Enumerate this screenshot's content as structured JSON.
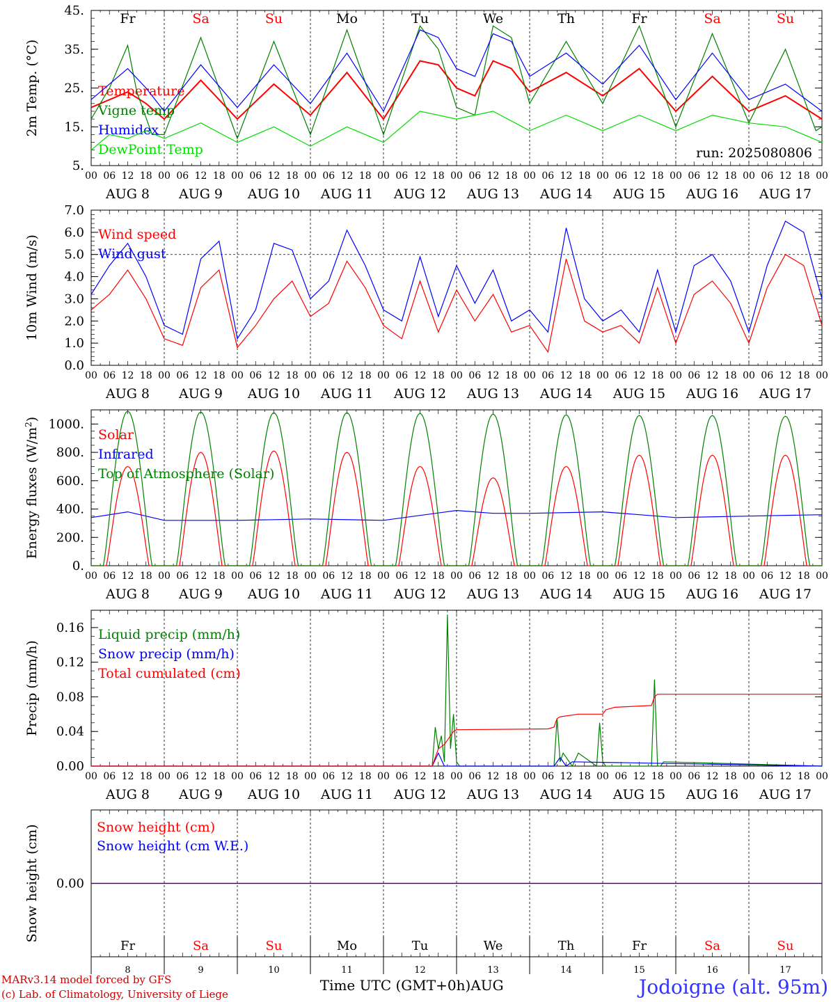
{
  "run_label": "run: 2025080806",
  "location_label": "Jodoigne (alt. 95m)",
  "credit_line1": "MARv3.14 model forced by GFS",
  "credit_line2": "(c) Lab. of Climatology, University of Liege",
  "x_axis_label": "Time UTC (GMT+0h)",
  "month_label": "AUG",
  "hour_ticks": [
    "00",
    "06",
    "12",
    "18"
  ],
  "days": [
    {
      "weekday": "Fr",
      "date_label": "AUG  8",
      "day": "8",
      "weekend": false
    },
    {
      "weekday": "Sa",
      "date_label": "AUG  9",
      "day": "9",
      "weekend": true
    },
    {
      "weekday": "Su",
      "date_label": "AUG 10",
      "day": "10",
      "weekend": true
    },
    {
      "weekday": "Mo",
      "date_label": "AUG 11",
      "day": "11",
      "weekend": false
    },
    {
      "weekday": "Tu",
      "date_label": "AUG 12",
      "day": "12",
      "weekend": false
    },
    {
      "weekday": "We",
      "date_label": "AUG 13",
      "day": "13",
      "weekend": false
    },
    {
      "weekday": "Th",
      "date_label": "AUG 14",
      "day": "14",
      "weekend": false
    },
    {
      "weekday": "Fr",
      "date_label": "AUG 15",
      "day": "15",
      "weekend": false
    },
    {
      "weekday": "Sa",
      "date_label": "AUG 16",
      "day": "16",
      "weekend": true
    },
    {
      "weekday": "Su",
      "date_label": "AUG 17",
      "day": "17",
      "weekend": true
    }
  ],
  "colors": {
    "weekday": "#000000",
    "weekend": "#ff0000",
    "red": "#ff0000",
    "green": "#008000",
    "blue": "#0000ff",
    "lightgreen": "#00dd00",
    "location": "#3333ff",
    "credit": "#cc0000"
  },
  "chart_data": [
    {
      "type": "line",
      "ylabel": "2m Temp. (°C)",
      "ylim": [
        5,
        45
      ],
      "ytick_labels": [
        "5.",
        "15.",
        "25.",
        "35.",
        "45."
      ],
      "x_unit": "hours since Aug 8 00 UTC",
      "series": [
        {
          "name": "Temperature",
          "color": "red",
          "x": [
            0,
            12,
            18,
            24,
            36,
            48,
            60,
            72,
            84,
            96,
            108,
            114,
            120,
            126,
            132,
            138,
            144,
            156,
            168,
            180,
            192,
            204,
            216,
            228,
            240
          ],
          "values": [
            20,
            24,
            21,
            17,
            27,
            17,
            26,
            18,
            29,
            17,
            32,
            31,
            25,
            23,
            32,
            30,
            24,
            29,
            23,
            30,
            19,
            28,
            19,
            23,
            17
          ]
        },
        {
          "name": "Vigne temp",
          "color": "green",
          "x": [
            0,
            6,
            12,
            15,
            20,
            24,
            36,
            48,
            60,
            72,
            84,
            96,
            108,
            114,
            120,
            126,
            132,
            138,
            144,
            156,
            168,
            180,
            192,
            204,
            216,
            228,
            238,
            240
          ],
          "values": [
            17,
            25,
            36,
            24,
            13,
            13,
            38,
            12,
            37,
            13,
            40,
            13,
            41,
            35,
            20,
            18,
            41,
            38,
            21,
            37,
            21,
            41,
            15,
            39,
            16,
            35,
            14,
            15
          ]
        },
        {
          "name": "Humidex",
          "color": "blue",
          "x": [
            0,
            12,
            18,
            24,
            36,
            48,
            60,
            72,
            84,
            96,
            108,
            114,
            120,
            126,
            132,
            138,
            144,
            156,
            168,
            180,
            192,
            204,
            216,
            228,
            240
          ],
          "values": [
            22,
            30,
            25,
            19,
            31,
            20,
            31,
            21,
            34,
            19,
            40,
            38,
            30,
            28,
            39,
            37,
            28,
            34,
            26,
            36,
            22,
            34,
            22,
            26,
            19
          ]
        },
        {
          "name": "DewPoint Temp",
          "color": "lightgreen",
          "x": [
            0,
            6,
            12,
            18,
            24,
            36,
            48,
            60,
            72,
            84,
            96,
            108,
            120,
            132,
            144,
            156,
            168,
            180,
            192,
            204,
            216,
            228,
            240
          ],
          "values": [
            9,
            13,
            12,
            14,
            12,
            16,
            11,
            15,
            10,
            15,
            11,
            19,
            17,
            19,
            14,
            18,
            14,
            18,
            14,
            18,
            16,
            15,
            11
          ]
        }
      ]
    },
    {
      "type": "line",
      "ylabel": "10m Wind (m/s)",
      "ylim": [
        0,
        7
      ],
      "ytick_labels": [
        "0.0",
        "1.0",
        "2.0",
        "3.0",
        "4.0",
        "5.0",
        "6.0",
        "7.0"
      ],
      "reference_line": 5,
      "series": [
        {
          "name": "Wind speed",
          "color": "red",
          "x": [
            0,
            6,
            12,
            18,
            24,
            30,
            36,
            42,
            48,
            54,
            60,
            66,
            72,
            78,
            84,
            90,
            96,
            102,
            108,
            114,
            120,
            126,
            132,
            138,
            144,
            150,
            156,
            162,
            168,
            174,
            180,
            186,
            192,
            198,
            204,
            210,
            216,
            222,
            228,
            234,
            240
          ],
          "values": [
            2.5,
            3.2,
            4.3,
            3.0,
            1.2,
            0.9,
            3.5,
            4.3,
            0.8,
            1.8,
            3.0,
            3.8,
            2.2,
            2.8,
            4.7,
            3.5,
            1.8,
            1.2,
            3.8,
            1.5,
            3.4,
            2.0,
            3.2,
            1.5,
            1.8,
            0.6,
            4.8,
            2.0,
            1.5,
            1.8,
            1.0,
            3.5,
            1.0,
            3.2,
            3.8,
            2.8,
            1.0,
            3.5,
            5.0,
            4.5,
            1.8
          ]
        },
        {
          "name": "Wind gust",
          "color": "blue",
          "x": [
            0,
            6,
            12,
            18,
            24,
            30,
            36,
            42,
            48,
            54,
            60,
            66,
            72,
            78,
            84,
            90,
            96,
            102,
            108,
            114,
            120,
            126,
            132,
            138,
            144,
            150,
            156,
            162,
            168,
            174,
            180,
            186,
            192,
            198,
            204,
            210,
            216,
            222,
            228,
            234,
            240
          ],
          "values": [
            3.2,
            4.5,
            5.5,
            4.0,
            1.8,
            1.4,
            4.8,
            5.6,
            1.2,
            2.5,
            5.5,
            5.2,
            3.0,
            3.8,
            6.1,
            4.5,
            2.5,
            2.0,
            4.9,
            2.2,
            4.5,
            2.8,
            4.3,
            2.0,
            2.5,
            1.5,
            6.2,
            3.0,
            2.0,
            2.5,
            1.5,
            4.3,
            1.5,
            4.5,
            5.0,
            3.8,
            1.5,
            4.5,
            6.5,
            6.0,
            3.0
          ]
        }
      ]
    },
    {
      "type": "line",
      "ylabel": "Energy fluxes (W/m2)",
      "ylim": [
        0,
        1100
      ],
      "ytick_labels": [
        "0.",
        "200.",
        "400.",
        "600.",
        "800.",
        "1000."
      ],
      "series": [
        {
          "name": "Solar",
          "color": "red",
          "peak_per_day": [
            700,
            800,
            810,
            800,
            700,
            620,
            700,
            780,
            780,
            780
          ]
        },
        {
          "name": "Infrared",
          "color": "blue",
          "x": [
            0,
            12,
            24,
            48,
            72,
            96,
            120,
            132,
            144,
            168,
            180,
            192,
            216,
            240
          ],
          "values": [
            340,
            380,
            320,
            320,
            330,
            320,
            390,
            370,
            370,
            380,
            360,
            340,
            350,
            360
          ]
        },
        {
          "name": "Top of Atmosphere (Solar)",
          "color": "green",
          "peak_per_day": [
            1090,
            1085,
            1080,
            1080,
            1075,
            1070,
            1065,
            1060,
            1060,
            1055
          ]
        }
      ]
    },
    {
      "type": "line",
      "ylabel": "Precip (mm/h)",
      "ylim": [
        0,
        0.18
      ],
      "ytick_labels": [
        "0.00",
        "0.04",
        "0.08",
        "0.12",
        "0.16"
      ],
      "series": [
        {
          "name": "Liquid precip (mm/h)",
          "color": "green",
          "x": [
            0,
            112,
            113,
            114,
            115,
            116,
            117,
            118,
            119,
            120,
            121,
            122,
            130,
            152,
            153,
            154,
            155,
            158,
            160,
            166,
            167,
            168,
            169,
            172,
            184,
            185,
            186,
            187,
            188,
            240
          ],
          "values": [
            0,
            0,
            0.045,
            0.02,
            0.035,
            0.005,
            0.175,
            0.02,
            0.06,
            0.005,
            0,
            0,
            0,
            0,
            0.055,
            0.005,
            0.015,
            0,
            0.015,
            0,
            0.05,
            0.005,
            0,
            0,
            0,
            0.1,
            0,
            0,
            0.005,
            0
          ]
        },
        {
          "name": "Snow precip (mm/h)",
          "color": "blue",
          "x": [
            0,
            112,
            114,
            116,
            152,
            154,
            156,
            158,
            240
          ],
          "values": [
            0,
            0,
            0.015,
            0,
            0,
            0.01,
            0,
            0.005,
            0
          ]
        },
        {
          "name": "Total cumulated (cm)",
          "color": "red",
          "x": [
            0,
            112,
            114,
            116,
            117,
            118,
            119,
            120,
            150,
            152,
            153,
            154,
            160,
            168,
            169,
            172,
            184,
            185,
            186,
            240
          ],
          "values": [
            0,
            0,
            0.02,
            0.025,
            0.03,
            0.035,
            0.04,
            0.042,
            0.043,
            0.045,
            0.055,
            0.057,
            0.06,
            0.06,
            0.065,
            0.068,
            0.07,
            0.08,
            0.083,
            0.083
          ]
        }
      ]
    },
    {
      "type": "line",
      "ylabel": "Snow height (cm)",
      "ylim": [
        -1,
        1
      ],
      "ytick_labels": [
        "0.00"
      ],
      "series": [
        {
          "name": "Snow height (cm)",
          "color": "red",
          "x": [
            0,
            240
          ],
          "values": [
            0,
            0
          ]
        },
        {
          "name": "Snow height (cm W.E.)",
          "color": "blue",
          "x": [
            0,
            240
          ],
          "values": [
            0,
            0
          ]
        }
      ]
    }
  ]
}
